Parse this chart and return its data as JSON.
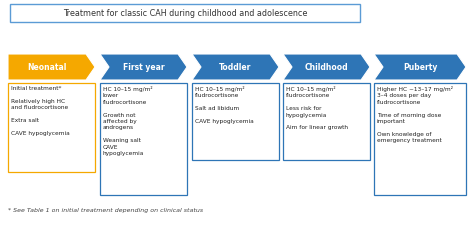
{
  "title": "Treatment for classic CAH during childhood and adolescence",
  "title_box_color": "#5b9bd5",
  "background_color": "#ffffff",
  "arrow_stages": [
    "Neonatal",
    "First year",
    "Toddler",
    "Childhood",
    "Puberty"
  ],
  "arrow_colors": [
    "#f5a800",
    "#2e75b6",
    "#2e75b6",
    "#2e75b6",
    "#2e75b6"
  ],
  "arrow_text_color": "#ffffff",
  "box_border_colors": [
    "#f5a800",
    "#2e75b6",
    "#2e75b6",
    "#2e75b6",
    "#2e75b6"
  ],
  "box_texts": [
    "Initial treatment*\n\nRelatively high HC\nand fludrocortisone\n\nExtra salt\n\nCAVE hypoglycemia",
    "HC 10–15 mg/m²\nlower\nfludrocortisone\n\nGrowth not\naffected by\nandrogens\n\nWeaning salt\nCAVE\nhypoglycemia",
    "HC 10–15 mg/m²\nfludrocortisone\n\nSalt ad libidum\n\nCAVE hypoglycemia",
    "HC 10–15 mg/m²\nfludrocortisone\n\nLess risk for\nhypoglycemia\n\nAim for linear growth",
    "Higher HC ~13–17 mg/m²\n3–4 doses per day\nfludrocortisone\n\nTime of morning dose\nimportant\n\nOwn knowledge of\nemergency treatment"
  ],
  "footnote": "* See Table 1 on initial treatment depending on clinical status",
  "figsize": [
    4.74,
    2.39
  ],
  "dpi": 100
}
